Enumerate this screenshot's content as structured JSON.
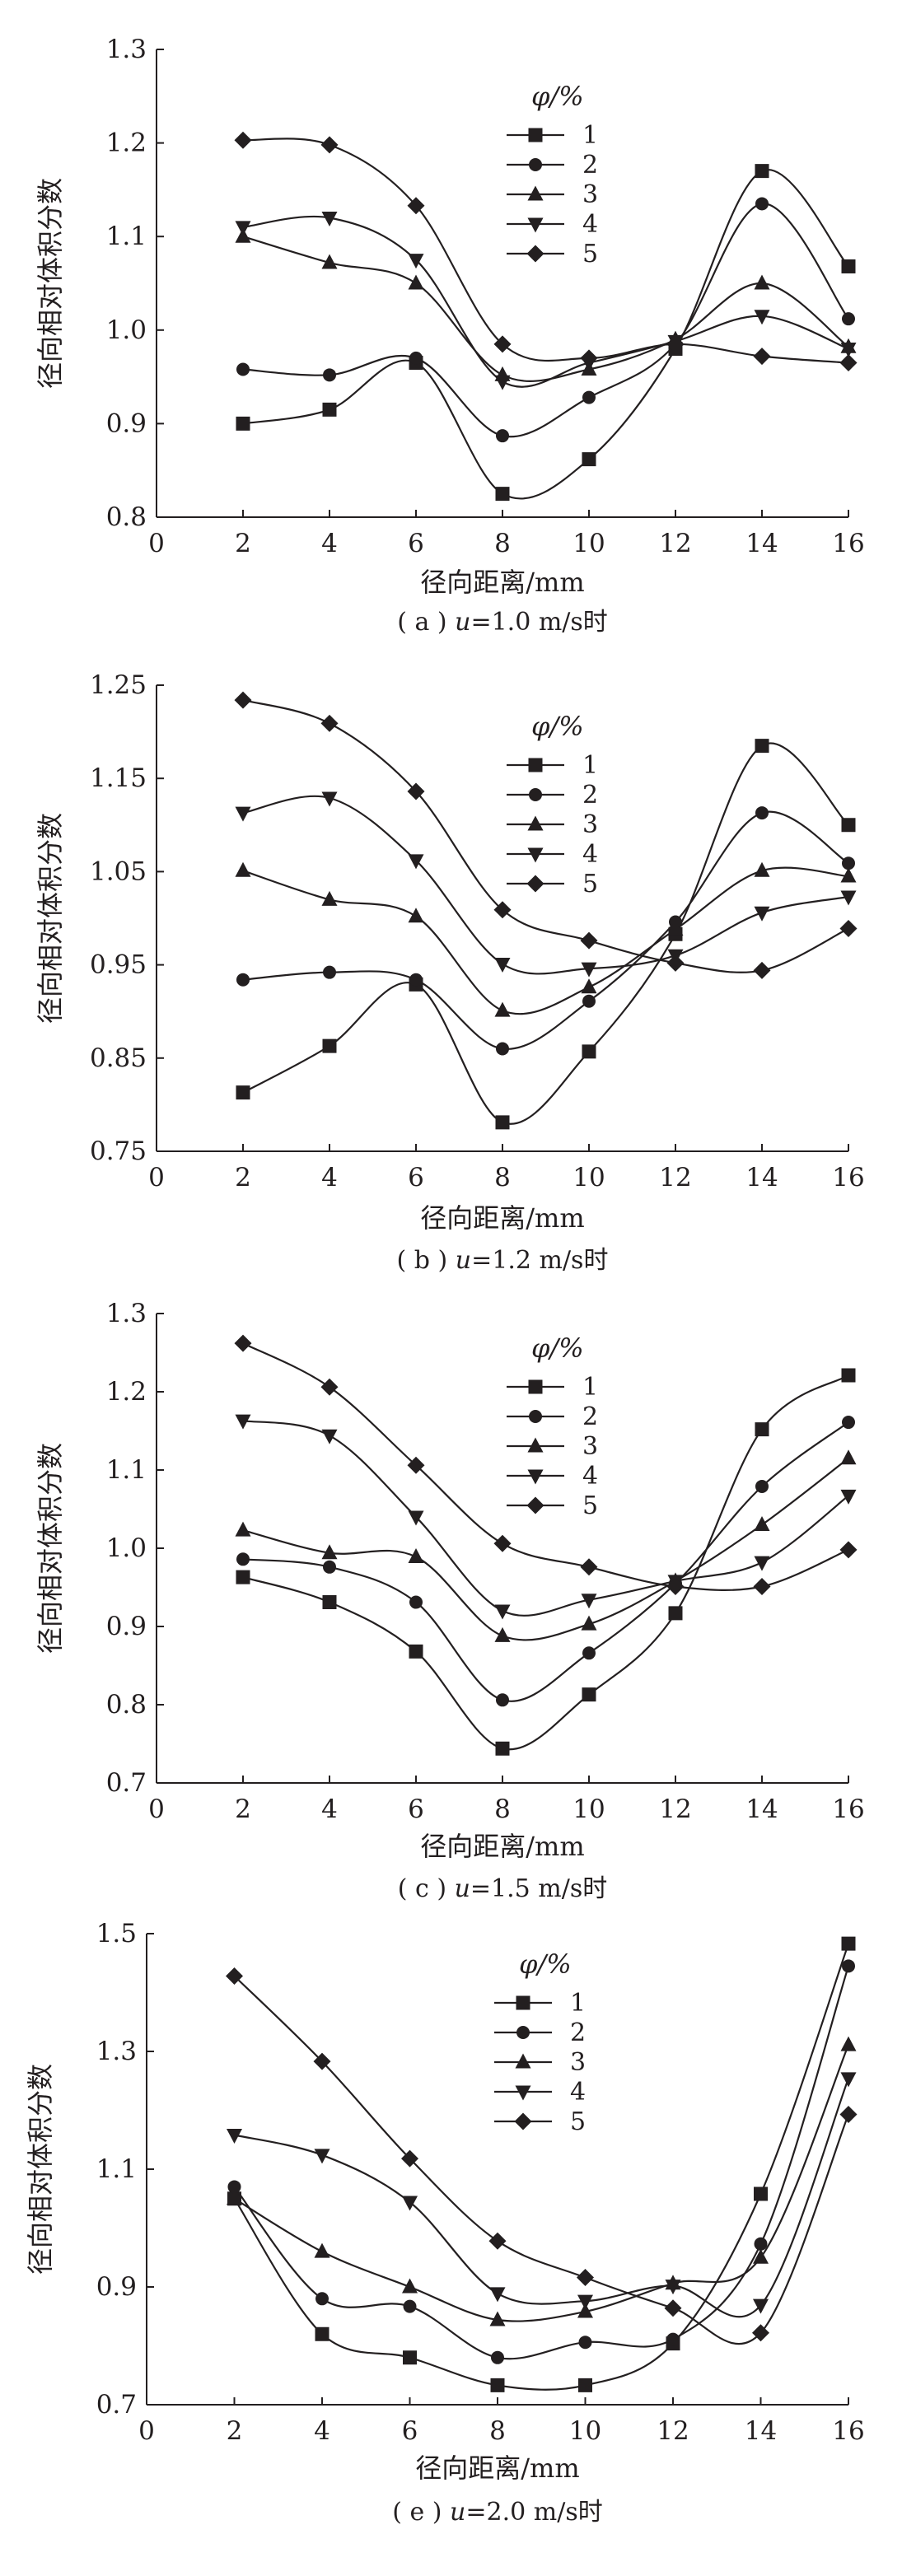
{
  "panels": [
    {
      "caption": "( a ) u=1.0 m/s时",
      "caption_parts": [
        "( a ) ",
        "u",
        "=1.0 m/s时"
      ],
      "xlabel": "径向距离/mm",
      "ylabel": "径向相对体积分数",
      "legend_title": "φ/%",
      "x_ticks": [
        "0",
        "2",
        "4",
        "6",
        "8",
        "10",
        "12",
        "14",
        "16"
      ],
      "y_ticks": [
        "0.8",
        "0.9",
        "1.0",
        "1.1",
        "1.2",
        "1.3"
      ]
    },
    {
      "caption": "( b ) u=1.2 m/s时",
      "caption_parts": [
        "( b ) ",
        "u",
        "=1.2 m/s时"
      ],
      "xlabel": "径向距离/mm",
      "ylabel": "径向相对体积分数",
      "legend_title": "φ/%",
      "x_ticks": [
        "0",
        "2",
        "4",
        "6",
        "8",
        "10",
        "12",
        "14",
        "16"
      ],
      "y_ticks": [
        "0.75",
        "0.85",
        "0.95",
        "1.05",
        "1.15",
        "1.25"
      ]
    },
    {
      "caption": "( c ) u=1.5 m/s时",
      "caption_parts": [
        "( c ) ",
        "u",
        "=1.5 m/s时"
      ],
      "xlabel": "径向距离/mm",
      "ylabel": "径向相对体积分数",
      "legend_title": "φ/%",
      "x_ticks": [
        "0",
        "2",
        "4",
        "6",
        "8",
        "10",
        "12",
        "14",
        "16"
      ],
      "y_ticks": [
        "0.7",
        "0.8",
        "0.9",
        "1.0",
        "1.1",
        "1.2",
        "1.3"
      ]
    },
    {
      "caption": "( e ) u=2.0 m/s时",
      "caption_parts": [
        "( e ) ",
        "u",
        "=2.0 m/s时"
      ],
      "xlabel": "径向距离/mm",
      "ylabel": "径向相对体积分数",
      "legend_title": "φ/%",
      "x_ticks": [
        "0",
        "2",
        "4",
        "6",
        "8",
        "10",
        "12",
        "14",
        "16"
      ],
      "y_ticks": [
        "0.7",
        "0.9",
        "1.1",
        "1.3",
        "1.5"
      ]
    }
  ],
  "chart_data": [
    {
      "type": "line",
      "title": "( a ) u=1.0 m/s时",
      "xlabel": "径向距离/mm",
      "ylabel": "径向相对体积分数",
      "legend_title": "φ/%",
      "legend_position": "top-right",
      "grid": false,
      "xlim": [
        0,
        16
      ],
      "ylim": [
        0.8,
        1.3
      ],
      "x": [
        2,
        4,
        6,
        8,
        10,
        12,
        14,
        16
      ],
      "markers": [
        "square",
        "circle",
        "triangle-up",
        "triangle-down",
        "diamond"
      ],
      "series": [
        {
          "name": "1",
          "values": [
            0.9,
            0.915,
            0.965,
            0.825,
            0.862,
            0.98,
            1.17,
            1.068
          ]
        },
        {
          "name": "2",
          "values": [
            0.958,
            0.952,
            0.97,
            0.887,
            0.928,
            0.985,
            1.135,
            1.012
          ]
        },
        {
          "name": "3",
          "values": [
            1.1,
            1.072,
            1.05,
            0.952,
            0.958,
            0.99,
            1.05,
            0.982
          ]
        },
        {
          "name": "4",
          "values": [
            1.11,
            1.12,
            1.075,
            0.945,
            0.965,
            0.988,
            1.015,
            0.98
          ]
        },
        {
          "name": "5",
          "values": [
            1.203,
            1.198,
            1.133,
            0.985,
            0.97,
            0.985,
            0.972,
            0.965
          ]
        }
      ]
    },
    {
      "type": "line",
      "title": "( b ) u=1.2 m/s时",
      "xlabel": "径向距离/mm",
      "ylabel": "径向相对体积分数",
      "legend_title": "φ/%",
      "legend_position": "top-center",
      "grid": false,
      "xlim": [
        0,
        16
      ],
      "ylim": [
        0.75,
        1.25
      ],
      "x": [
        2,
        4,
        6,
        8,
        10,
        12,
        14,
        16
      ],
      "markers": [
        "square",
        "circle",
        "triangle-up",
        "triangle-down",
        "diamond"
      ],
      "series": [
        {
          "name": "1",
          "values": [
            0.813,
            0.863,
            0.929,
            0.781,
            0.857,
            0.983,
            1.185,
            1.1
          ]
        },
        {
          "name": "2",
          "values": [
            0.934,
            0.942,
            0.934,
            0.86,
            0.911,
            0.996,
            1.113,
            1.059
          ]
        },
        {
          "name": "3",
          "values": [
            1.051,
            1.02,
            1.002,
            0.901,
            0.926,
            0.988,
            1.051,
            1.045
          ]
        },
        {
          "name": "4",
          "values": [
            1.113,
            1.129,
            1.062,
            0.951,
            0.946,
            0.96,
            1.006,
            1.023
          ]
        },
        {
          "name": "5",
          "values": [
            1.234,
            1.209,
            1.136,
            1.009,
            0.976,
            0.952,
            0.944,
            0.989
          ]
        }
      ]
    },
    {
      "type": "line",
      "title": "( c ) u=1.5 m/s时",
      "xlabel": "径向距离/mm",
      "ylabel": "径向相对体积分数",
      "legend_title": "φ/%",
      "legend_position": "top-center",
      "grid": false,
      "xlim": [
        0,
        16
      ],
      "ylim": [
        0.7,
        1.3
      ],
      "x": [
        2,
        4,
        6,
        8,
        10,
        12,
        14,
        16
      ],
      "markers": [
        "square",
        "circle",
        "triangle-up",
        "triangle-down",
        "diamond"
      ],
      "series": [
        {
          "name": "1",
          "values": [
            0.963,
            0.931,
            0.868,
            0.744,
            0.813,
            0.917,
            1.152,
            1.221
          ]
        },
        {
          "name": "2",
          "values": [
            0.986,
            0.976,
            0.931,
            0.806,
            0.866,
            0.955,
            1.079,
            1.161
          ]
        },
        {
          "name": "3",
          "values": [
            1.023,
            0.994,
            0.989,
            0.888,
            0.903,
            0.958,
            1.03,
            1.115
          ]
        },
        {
          "name": "4",
          "values": [
            1.163,
            1.144,
            1.04,
            0.92,
            0.934,
            0.958,
            0.982,
            1.067
          ]
        },
        {
          "name": "5",
          "values": [
            1.262,
            1.206,
            1.106,
            1.006,
            0.976,
            0.951,
            0.951,
            0.998
          ]
        }
      ]
    },
    {
      "type": "line",
      "title": "( e ) u=2.0 m/s时",
      "xlabel": "径向距离/mm",
      "ylabel": "径向相对体积分数",
      "legend_title": "φ/%",
      "legend_position": "top-center",
      "grid": false,
      "xlim": [
        0,
        16
      ],
      "ylim": [
        0.7,
        1.5
      ],
      "x": [
        2,
        4,
        6,
        8,
        10,
        12,
        14,
        16
      ],
      "markers": [
        "square",
        "circle",
        "triangle-up",
        "triangle-down",
        "diamond"
      ],
      "series": [
        {
          "name": "1",
          "values": [
            1.05,
            0.82,
            0.78,
            0.733,
            0.733,
            0.804,
            1.058,
            1.483
          ]
        },
        {
          "name": "2",
          "values": [
            1.07,
            0.88,
            0.867,
            0.78,
            0.806,
            0.811,
            0.973,
            1.445
          ]
        },
        {
          "name": "3",
          "values": [
            1.05,
            0.96,
            0.9,
            0.844,
            0.858,
            0.906,
            0.95,
            1.311
          ]
        },
        {
          "name": "4",
          "values": [
            1.158,
            1.124,
            1.044,
            0.889,
            0.876,
            0.902,
            0.869,
            1.254
          ]
        },
        {
          "name": "5",
          "values": [
            1.428,
            1.283,
            1.118,
            0.978,
            0.916,
            0.864,
            0.822,
            1.193
          ]
        }
      ]
    }
  ]
}
